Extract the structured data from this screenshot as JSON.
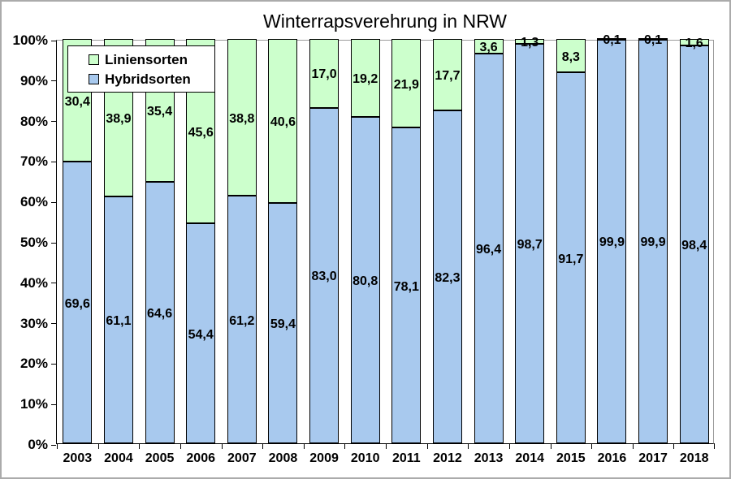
{
  "chart_data": {
    "type": "bar",
    "stacked": true,
    "title": "Winterrapsverehrung in NRW",
    "categories": [
      "2003",
      "2004",
      "2005",
      "2006",
      "2007",
      "2008",
      "2009",
      "2010",
      "2011",
      "2012",
      "2013",
      "2014",
      "2015",
      "2016",
      "2017",
      "2018"
    ],
    "series": [
      {
        "name": "Hybridsorten",
        "color": "#A8C9EE",
        "values": [
          69.6,
          61.1,
          64.6,
          54.4,
          61.2,
          59.4,
          83.0,
          80.8,
          78.1,
          82.3,
          96.4,
          98.7,
          91.7,
          99.9,
          99.9,
          98.4
        ],
        "labels": [
          "69,6",
          "61,1",
          "64,6",
          "54,4",
          "61,2",
          "59,4",
          "83,0",
          "80,8",
          "78,1",
          "82,3",
          "96,4",
          "98,7",
          "91,7",
          "99,9",
          "99,9",
          "98,4"
        ]
      },
      {
        "name": "Liniensorten",
        "color": "#CCFFCC",
        "values": [
          30.4,
          38.9,
          35.4,
          45.6,
          38.8,
          40.6,
          17.0,
          19.2,
          21.9,
          17.7,
          3.6,
          1.3,
          8.3,
          0.1,
          0.1,
          1.6
        ],
        "labels": [
          "30,4",
          "38,9",
          "35,4",
          "45,6",
          "38,8",
          "40,6",
          "17,0",
          "19,2",
          "21,9",
          "17,7",
          "3,6",
          "1,3",
          "8,3",
          "0,1",
          "0,1",
          "1,6"
        ]
      }
    ],
    "xlabel": "",
    "ylabel": "",
    "ylim": [
      0,
      100
    ],
    "y_ticks": [
      "0%",
      "10%",
      "20%",
      "30%",
      "40%",
      "50%",
      "60%",
      "70%",
      "80%",
      "90%",
      "100%"
    ],
    "grid": false,
    "legend": {
      "position": "top-left",
      "entries": [
        {
          "label": "Liniensorten",
          "color": "#CCFFCC"
        },
        {
          "label": "Hybridsorten",
          "color": "#A8C9EE"
        }
      ]
    },
    "colors": {
      "bar_border": "#000000",
      "axis": "#000000",
      "plot_frame": "#9A9A9A",
      "outer_frame": "#ABABAB",
      "background": "#FFFFFF"
    }
  }
}
